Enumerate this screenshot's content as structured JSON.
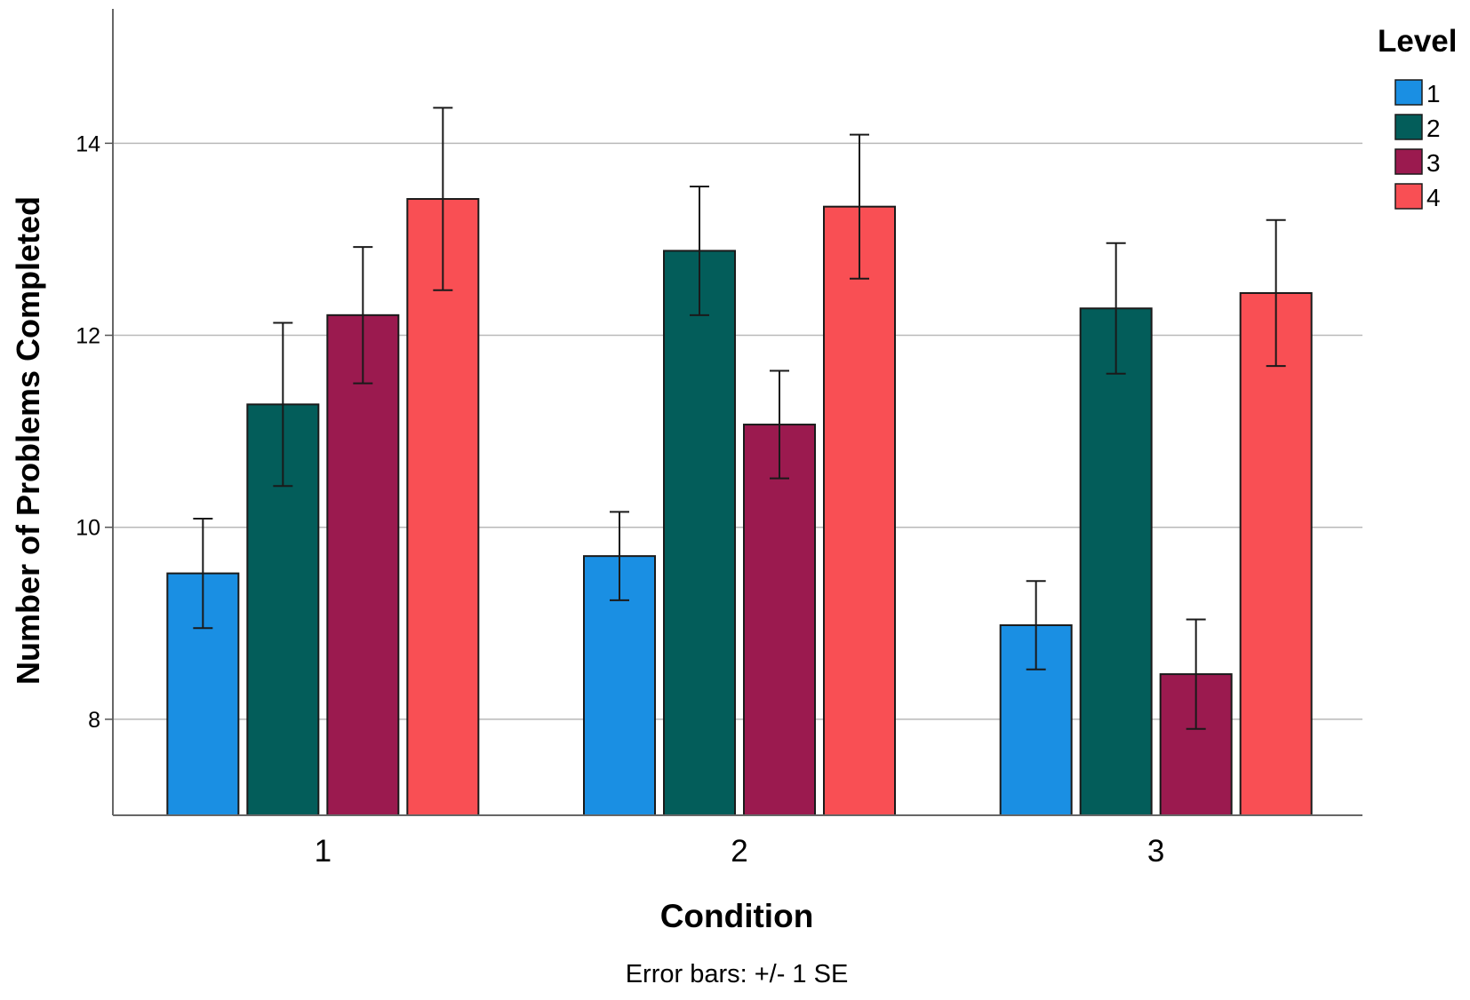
{
  "chart_data": {
    "type": "bar",
    "title": "",
    "xlabel": "Condition",
    "ylabel": "Number of Problems Completed",
    "footnote": "Error bars: +/- 1 SE",
    "categories": [
      "1",
      "2",
      "3"
    ],
    "legend_title": "Level",
    "legend_position": "top-right",
    "ylim": [
      7,
      15.4
    ],
    "yticks": [
      8,
      10,
      12,
      14
    ],
    "grid": true,
    "series": [
      {
        "name": "1",
        "color": "#1a8fe3",
        "values": [
          9.52,
          9.7,
          8.98
        ],
        "se": [
          0.57,
          0.46,
          0.46
        ]
      },
      {
        "name": "2",
        "color": "#035d5a",
        "values": [
          11.28,
          12.88,
          12.28
        ],
        "se": [
          0.85,
          0.67,
          0.68
        ]
      },
      {
        "name": "3",
        "color": "#9b1a4f",
        "values": [
          12.21,
          11.07,
          8.47
        ],
        "se": [
          0.71,
          0.56,
          0.57
        ]
      },
      {
        "name": "4",
        "color": "#f94f54",
        "values": [
          13.42,
          13.34,
          12.44
        ],
        "se": [
          0.95,
          0.75,
          0.76
        ]
      }
    ]
  }
}
